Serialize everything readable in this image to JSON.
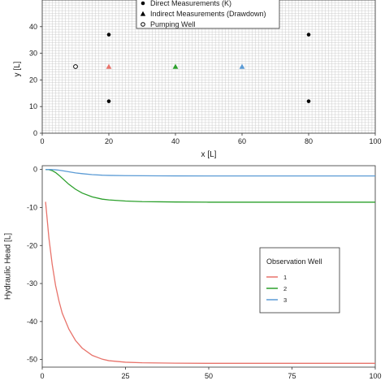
{
  "chart_data": [
    {
      "type": "scatter",
      "xlabel": "x [L]",
      "ylabel": "y [L]",
      "xlim": [
        0,
        100
      ],
      "ylim": [
        0,
        50
      ],
      "xticks": [
        0,
        20,
        40,
        60,
        80,
        100
      ],
      "yticks": [
        0,
        10,
        20,
        30,
        40
      ],
      "grid": true,
      "legend": {
        "placement": "top-center",
        "entries": [
          "Direct Measurements (K)",
          "Indirect Measurements (Drawdown)",
          "Pumping Well"
        ]
      },
      "series": [
        {
          "name": "Direct Measurements (K)",
          "marker": "filled-circle",
          "color": "#000000",
          "points": [
            [
              20,
              37
            ],
            [
              80,
              37
            ],
            [
              20,
              12
            ],
            [
              80,
              12
            ]
          ]
        },
        {
          "name": "Indirect Measurements (Drawdown)",
          "marker": "triangle",
          "points": [
            {
              "x": 20,
              "y": 25,
              "color": "#e8736b"
            },
            {
              "x": 40,
              "y": 25,
              "color": "#2ca02c"
            },
            {
              "x": 60,
              "y": 25,
              "color": "#5b9bd5"
            }
          ]
        },
        {
          "name": "Pumping Well",
          "marker": "open-circle",
          "color": "#000000",
          "points": [
            [
              10,
              25
            ]
          ]
        }
      ]
    },
    {
      "type": "line",
      "xlabel": "",
      "ylabel": "Hydraulic Head [L]",
      "xlim": [
        0,
        100
      ],
      "ylim": [
        -52,
        1
      ],
      "xticks": [
        0,
        25,
        50,
        75,
        100
      ],
      "yticks": [
        0,
        -10,
        -20,
        -30,
        -40,
        -50
      ],
      "grid": false,
      "legend": {
        "title": "Observation Well",
        "placement": "center-right",
        "entries": [
          "1",
          "2",
          "3"
        ]
      },
      "series": [
        {
          "name": "1",
          "color": "#e8736b",
          "x": [
            1,
            2,
            3,
            4,
            5,
            6,
            8,
            10,
            12,
            15,
            18,
            20,
            25,
            30,
            35,
            40,
            50,
            60,
            75,
            100
          ],
          "values": [
            -8.5,
            -18,
            -25,
            -30.5,
            -34.5,
            -37.8,
            -42,
            -45,
            -47,
            -48.9,
            -49.9,
            -50.3,
            -50.7,
            -50.85,
            -50.9,
            -50.95,
            -51,
            -51,
            -51,
            -51
          ]
        },
        {
          "name": "2",
          "color": "#2ca02c",
          "x": [
            1,
            2,
            3,
            4,
            5,
            6,
            8,
            10,
            12,
            15,
            18,
            20,
            25,
            30,
            35,
            40,
            50,
            60,
            75,
            100
          ],
          "values": [
            0,
            -0.05,
            -0.3,
            -0.8,
            -1.5,
            -2.3,
            -3.9,
            -5.2,
            -6.2,
            -7.2,
            -7.8,
            -8.0,
            -8.3,
            -8.45,
            -8.5,
            -8.55,
            -8.6,
            -8.6,
            -8.6,
            -8.6
          ]
        },
        {
          "name": "3",
          "color": "#5b9bd5",
          "x": [
            1,
            2,
            3,
            4,
            5,
            6,
            8,
            10,
            12,
            15,
            18,
            20,
            25,
            30,
            35,
            40,
            50,
            60,
            75,
            100
          ],
          "values": [
            0,
            0,
            -0.02,
            -0.08,
            -0.18,
            -0.3,
            -0.6,
            -0.9,
            -1.1,
            -1.35,
            -1.5,
            -1.55,
            -1.62,
            -1.65,
            -1.67,
            -1.68,
            -1.7,
            -1.7,
            -1.7,
            -1.7
          ]
        }
      ]
    }
  ]
}
